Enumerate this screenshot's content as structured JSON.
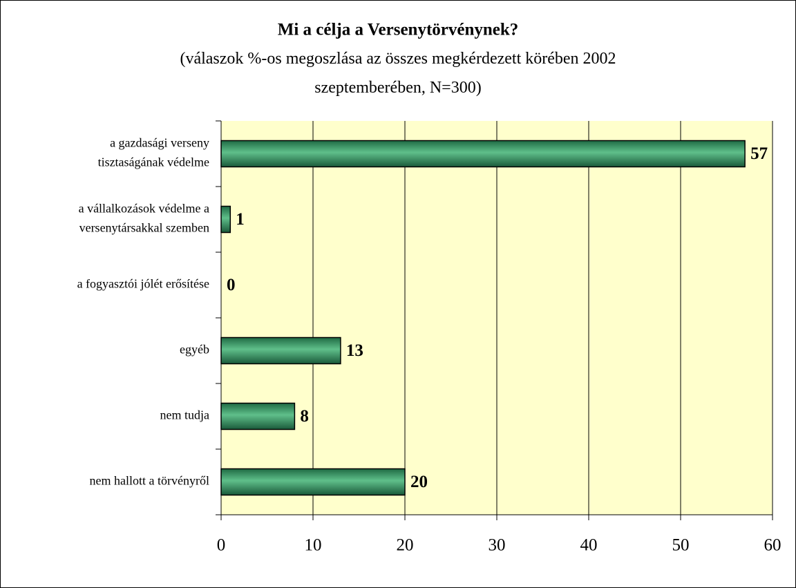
{
  "chart_data": {
    "type": "hbar",
    "title": "Mi a célja a Versenytörvénynek?",
    "subtitle": "(válaszok %-os megoszlása az összes megkérdezett körében 2002\nszeptemberében, N=300)",
    "categories": [
      "a gazdasági verseny\ntisztaságának védelme",
      "a vállalkozások védelme a\nversenytársakkal szemben",
      "a fogyasztói jólét erősítése",
      "egyéb",
      "nem tudja",
      "nem hallott a törvényről"
    ],
    "values": [
      57,
      1,
      0,
      13,
      8,
      20
    ],
    "color": "#2e8b57",
    "xlim": [
      0,
      60
    ],
    "xticks": [
      0,
      10,
      20,
      30,
      40,
      50,
      60
    ],
    "grid": true
  }
}
